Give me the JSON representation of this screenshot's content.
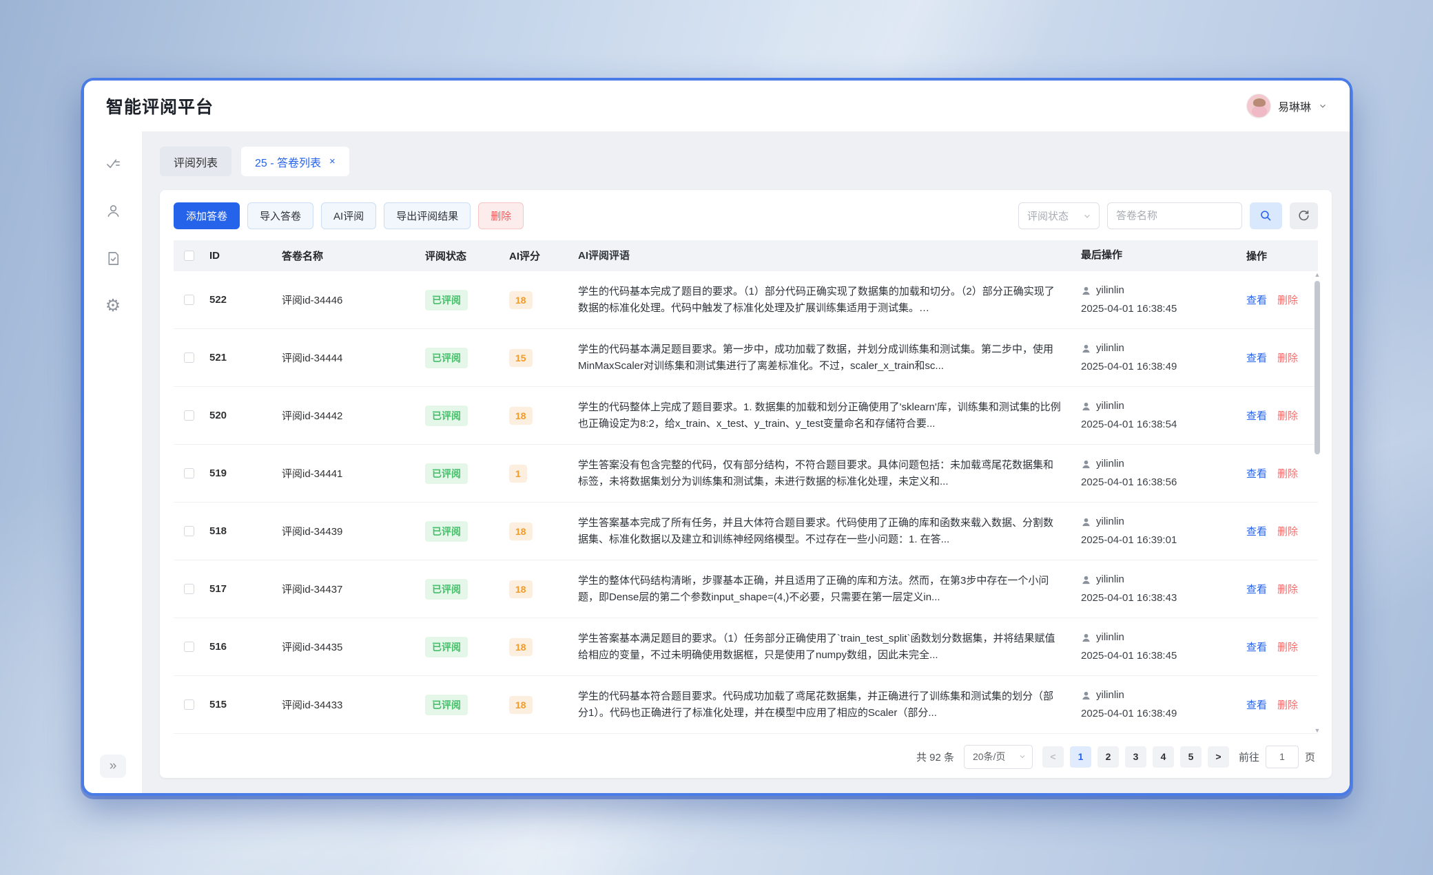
{
  "app": {
    "title": "智能评阅平台",
    "user": {
      "name": "易琳琳"
    }
  },
  "sidebar": {
    "items": [
      {
        "name": "checklist-icon"
      },
      {
        "name": "user-icon"
      },
      {
        "name": "document-check-icon"
      },
      {
        "name": "settings-gear-icon"
      }
    ],
    "collapse_glyph": "»"
  },
  "tabs": [
    {
      "label": "评阅列表",
      "active": false
    },
    {
      "label": "25 - 答卷列表",
      "active": true,
      "close_glyph": "×"
    }
  ],
  "toolbar": {
    "buttons": [
      {
        "label": "添加答卷",
        "style": "primary",
        "name": "add-answer-button"
      },
      {
        "label": "导入答卷",
        "style": "plain",
        "name": "import-answer-button"
      },
      {
        "label": "AI评阅",
        "style": "plain",
        "name": "ai-review-button"
      },
      {
        "label": "导出评阅结果",
        "style": "plain",
        "name": "export-results-button"
      },
      {
        "label": "删除",
        "style": "danger",
        "name": "delete-button"
      }
    ],
    "filters": {
      "status_placeholder": "评阅状态",
      "name_placeholder": "答卷名称"
    }
  },
  "table": {
    "columns": [
      "ID",
      "答卷名称",
      "评阅状态",
      "AI评分",
      "AI评阅评语",
      "最后操作",
      "操作"
    ],
    "view_label": "查看",
    "delete_label": "删除",
    "rows": [
      {
        "id": "522",
        "name": "评阅id-34446",
        "status": "已评阅",
        "score": "18",
        "comment": "学生的代码基本完成了题目的要求。（1）部分代码正确实现了数据集的加载和切分。（2）部分正确实现了数据的标准化处理。代码中触发了标准化处理及扩展训练集适用于测试集。…",
        "operator": "yilinlin",
        "time": "2025-04-01 16:38:45"
      },
      {
        "id": "521",
        "name": "评阅id-34444",
        "status": "已评阅",
        "score": "15",
        "comment": "学生的代码基本满足题目要求。第一步中，成功加载了数据，并划分成训练集和测试集。第二步中，使用MinMaxScaler对训练集和测试集进行了离差标准化。不过，scaler_x_train和sc...",
        "operator": "yilinlin",
        "time": "2025-04-01 16:38:49"
      },
      {
        "id": "520",
        "name": "评阅id-34442",
        "status": "已评阅",
        "score": "18",
        "comment": "学生的代码整体上完成了题目要求。1. 数据集的加载和划分正确使用了'sklearn'库，训练集和测试集的比例也正确设定为8:2，给x_train、x_test、y_train、y_test变量命名和存储符合要...",
        "operator": "yilinlin",
        "time": "2025-04-01 16:38:54"
      },
      {
        "id": "519",
        "name": "评阅id-34441",
        "status": "已评阅",
        "score": "1",
        "comment": "学生答案没有包含完整的代码，仅有部分结构，不符合题目要求。具体问题包括：未加载鸢尾花数据集和标签，未将数据集划分为训练集和测试集，未进行数据的标准化处理，未定义和...",
        "operator": "yilinlin",
        "time": "2025-04-01 16:38:56"
      },
      {
        "id": "518",
        "name": "评阅id-34439",
        "status": "已评阅",
        "score": "18",
        "comment": "学生答案基本完成了所有任务，并且大体符合题目要求。代码使用了正确的库和函数来载入数据、分割数据集、标准化数据以及建立和训练神经网络模型。不过存在一些小问题：1. 在答...",
        "operator": "yilinlin",
        "time": "2025-04-01 16:39:01"
      },
      {
        "id": "517",
        "name": "评阅id-34437",
        "status": "已评阅",
        "score": "18",
        "comment": "学生的整体代码结构清晰，步骤基本正确，并且适用了正确的库和方法。然而，在第3步中存在一个小问题，即Dense层的第二个参数input_shape=(4,)不必要，只需要在第一层定义in...",
        "operator": "yilinlin",
        "time": "2025-04-01 16:38:43"
      },
      {
        "id": "516",
        "name": "评阅id-34435",
        "status": "已评阅",
        "score": "18",
        "comment": "学生答案基本满足题目的要求。（1）任务部分正确使用了`train_test_split`函数划分数据集，并将结果赋值给相应的变量，不过未明确使用数据框，只是使用了numpy数组，因此未完全...",
        "operator": "yilinlin",
        "time": "2025-04-01 16:38:45"
      },
      {
        "id": "515",
        "name": "评阅id-34433",
        "status": "已评阅",
        "score": "18",
        "comment": "学生的代码基本符合题目要求。代码成功加载了鸢尾花数据集，并正确进行了训练集和测试集的划分（部分1）。代码也正确进行了标准化处理，并在模型中应用了相应的Scaler（部分...",
        "operator": "yilinlin",
        "time": "2025-04-01 16:38:49"
      }
    ]
  },
  "pagination": {
    "total_text": "共 92 条",
    "page_size_text": "20条/页",
    "prev_glyph": "<",
    "next_glyph": ">",
    "pages": [
      "1",
      "2",
      "3",
      "4",
      "5"
    ],
    "active_page": "1",
    "goto_label": "前往",
    "goto_value": "1",
    "page_unit": "页"
  }
}
